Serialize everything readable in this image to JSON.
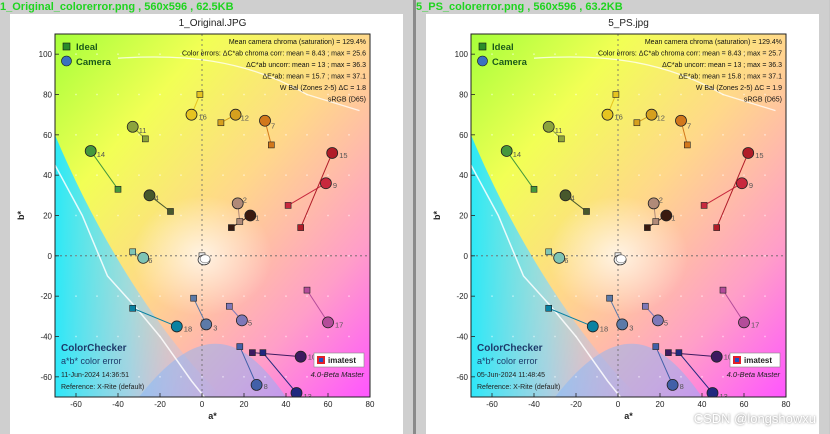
{
  "watermark": "CSDN @longshowxu",
  "panels": [
    {
      "file_header": "1_Original_colorerror.png , 560x596 , 62.5KB",
      "chart_data": {
        "type": "scatter",
        "title": "1_Original.JPG",
        "xlabel": "a*",
        "ylabel": "b*",
        "xlim": [
          -70,
          80
        ],
        "ylim": [
          -70,
          110
        ],
        "xticks": [
          -60,
          -40,
          -20,
          0,
          20,
          40,
          60,
          80
        ],
        "yticks": [
          -60,
          -40,
          -20,
          0,
          20,
          40,
          60,
          80,
          100
        ],
        "grid": false,
        "legend": [
          {
            "label": "Ideal",
            "marker": "square"
          },
          {
            "label": "Camera",
            "marker": "circle"
          }
        ],
        "info_lines": [
          "Mean camera chroma (saturation) = 129.4%",
          "Color errors: ΔC*ab chroma corr:  mean = 8.43 ;  max = 25.6",
          "ΔC*ab uncorr:  mean = 13 ;  max = 36.3",
          "ΔE*ab:  mean = 15.7 ;  max = 37.1",
          "W Bal (Zones 2-5) ΔC = 1.8",
          "sRGB (D65)"
        ],
        "footer": {
          "name": "ColorChecker",
          "subtitle": "a*b* color error",
          "date": "11-Jun-2024 14:36:51",
          "reference": "Reference: X-Rite (default)",
          "logo": "imatest",
          "version": "4.0-Beta  Master"
        },
        "patches": [
          {
            "id": "1",
            "ideal": [
              14,
              14
            ],
            "camera": [
              23,
              20
            ],
            "color": "#3a1a10"
          },
          {
            "id": "2",
            "ideal": [
              18,
              17
            ],
            "camera": [
              17,
              26
            ],
            "color": "#b08a78"
          },
          {
            "id": "3",
            "ideal": [
              -4,
              -21
            ],
            "camera": [
              2,
              -34
            ],
            "color": "#5c7aa8"
          },
          {
            "id": "4",
            "ideal": [
              -15,
              22
            ],
            "camera": [
              -25,
              30
            ],
            "color": "#47582c"
          },
          {
            "id": "5",
            "ideal": [
              13,
              -25
            ],
            "camera": [
              19,
              -32
            ],
            "color": "#7e78b8"
          },
          {
            "id": "6",
            "ideal": [
              -33,
              2
            ],
            "camera": [
              -28,
              -1
            ],
            "color": "#7ec4b4"
          },
          {
            "id": "7",
            "ideal": [
              33,
              55
            ],
            "camera": [
              30,
              67
            ],
            "color": "#d2781c"
          },
          {
            "id": "8",
            "ideal": [
              18,
              -45
            ],
            "camera": [
              26,
              -64
            ],
            "color": "#4260a8"
          },
          {
            "id": "9",
            "ideal": [
              41,
              25
            ],
            "camera": [
              59,
              36
            ],
            "color": "#c8283e"
          },
          {
            "id": "10",
            "ideal": [
              24,
              -48
            ],
            "camera": [
              47,
              -50
            ],
            "color": "#3c1a60"
          },
          {
            "id": "11",
            "ideal": [
              -27,
              58
            ],
            "camera": [
              -33,
              64
            ],
            "color": "#8ca43c"
          },
          {
            "id": "12",
            "ideal": [
              9,
              66
            ],
            "camera": [
              16,
              70
            ],
            "color": "#d6a01e"
          },
          {
            "id": "13",
            "ideal": [
              29,
              -48
            ],
            "camera": [
              45,
              -68
            ],
            "color": "#20287e"
          },
          {
            "id": "14",
            "ideal": [
              -40,
              33
            ],
            "camera": [
              -53,
              52
            ],
            "color": "#44983c"
          },
          {
            "id": "15",
            "ideal": [
              47,
              14
            ],
            "camera": [
              62,
              51
            ],
            "color": "#b01c28"
          },
          {
            "id": "16",
            "ideal": [
              -1,
              80
            ],
            "camera": [
              -5,
              70
            ],
            "color": "#e6c420"
          },
          {
            "id": "17",
            "ideal": [
              50,
              -17
            ],
            "camera": [
              60,
              -33
            ],
            "color": "#b44c9a"
          },
          {
            "id": "18",
            "ideal": [
              -33,
              -26
            ],
            "camera": [
              -12,
              -35
            ],
            "color": "#0a82a2"
          },
          {
            "id": "W",
            "ideal": [
              0,
              0
            ],
            "camera": [
              1,
              -2
            ],
            "color": "#f2f2f2"
          }
        ]
      }
    },
    {
      "file_header": "5_PS_colorerror.png , 560x596 , 63.2KB",
      "chart_data": {
        "type": "scatter",
        "title": "5_PS.jpg",
        "xlabel": "a*",
        "ylabel": "b*",
        "xlim": [
          -70,
          80
        ],
        "ylim": [
          -70,
          110
        ],
        "xticks": [
          -60,
          -40,
          -20,
          0,
          20,
          40,
          60,
          80
        ],
        "yticks": [
          -60,
          -40,
          -20,
          0,
          20,
          40,
          60,
          80,
          100
        ],
        "grid": false,
        "legend": [
          {
            "label": "Ideal",
            "marker": "square"
          },
          {
            "label": "Camera",
            "marker": "circle"
          }
        ],
        "info_lines": [
          "Mean camera chroma (saturation) = 129.4%",
          "Color errors: ΔC*ab chroma corr:  mean = 8.43 ;  max = 25.7",
          "ΔC*ab uncorr:  mean = 13 ;  max = 36.3",
          "ΔE*ab:  mean = 15.8 ;  max = 37.1",
          "W Bal (Zones 2-5) ΔC = 1.9",
          "sRGB (D65)"
        ],
        "footer": {
          "name": "ColorChecker",
          "subtitle": "a*b* color error",
          "date": "05-Jun-2024 11:48:45",
          "reference": "Reference: X-Rite (default)",
          "logo": "imatest",
          "version": "4.0-Beta  Master"
        },
        "patches": [
          {
            "id": "1",
            "ideal": [
              14,
              14
            ],
            "camera": [
              23,
              20
            ],
            "color": "#3a1a10"
          },
          {
            "id": "2",
            "ideal": [
              18,
              17
            ],
            "camera": [
              17,
              26
            ],
            "color": "#b08a78"
          },
          {
            "id": "3",
            "ideal": [
              -4,
              -21
            ],
            "camera": [
              2,
              -34
            ],
            "color": "#5c7aa8"
          },
          {
            "id": "4",
            "ideal": [
              -15,
              22
            ],
            "camera": [
              -25,
              30
            ],
            "color": "#47582c"
          },
          {
            "id": "5",
            "ideal": [
              13,
              -25
            ],
            "camera": [
              19,
              -32
            ],
            "color": "#7e78b8"
          },
          {
            "id": "6",
            "ideal": [
              -33,
              2
            ],
            "camera": [
              -28,
              -1
            ],
            "color": "#7ec4b4"
          },
          {
            "id": "7",
            "ideal": [
              33,
              55
            ],
            "camera": [
              30,
              67
            ],
            "color": "#d2781c"
          },
          {
            "id": "8",
            "ideal": [
              18,
              -45
            ],
            "camera": [
              26,
              -64
            ],
            "color": "#4260a8"
          },
          {
            "id": "9",
            "ideal": [
              41,
              25
            ],
            "camera": [
              59,
              36
            ],
            "color": "#c8283e"
          },
          {
            "id": "10",
            "ideal": [
              24,
              -48
            ],
            "camera": [
              47,
              -50
            ],
            "color": "#3c1a60"
          },
          {
            "id": "11",
            "ideal": [
              -27,
              58
            ],
            "camera": [
              -33,
              64
            ],
            "color": "#8ca43c"
          },
          {
            "id": "12",
            "ideal": [
              9,
              66
            ],
            "camera": [
              16,
              70
            ],
            "color": "#d6a01e"
          },
          {
            "id": "13",
            "ideal": [
              29,
              -48
            ],
            "camera": [
              45,
              -68
            ],
            "color": "#20287e"
          },
          {
            "id": "14",
            "ideal": [
              -40,
              33
            ],
            "camera": [
              -53,
              52
            ],
            "color": "#44983c"
          },
          {
            "id": "15",
            "ideal": [
              47,
              14
            ],
            "camera": [
              62,
              51
            ],
            "color": "#b01c28"
          },
          {
            "id": "16",
            "ideal": [
              -1,
              80
            ],
            "camera": [
              -5,
              70
            ],
            "color": "#e6c420"
          },
          {
            "id": "17",
            "ideal": [
              50,
              -17
            ],
            "camera": [
              60,
              -33
            ],
            "color": "#b44c9a"
          },
          {
            "id": "18",
            "ideal": [
              -33,
              -26
            ],
            "camera": [
              -12,
              -35
            ],
            "color": "#0a82a2"
          },
          {
            "id": "W",
            "ideal": [
              0,
              0
            ],
            "camera": [
              1,
              -2
            ],
            "color": "#f2f2f2"
          }
        ]
      }
    }
  ]
}
